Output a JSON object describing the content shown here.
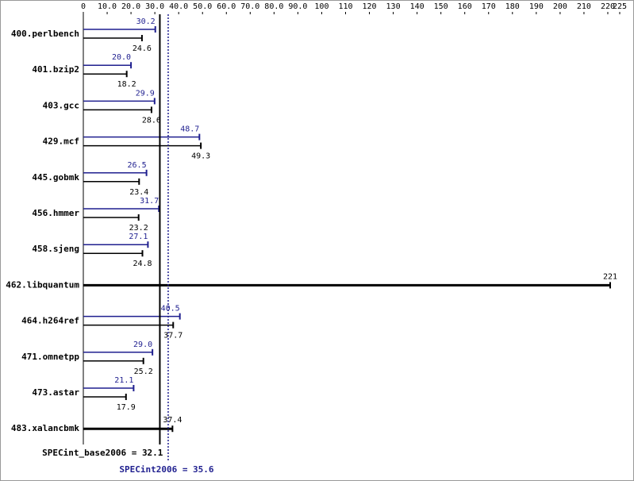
{
  "chart_data": {
    "type": "bar",
    "orientation": "horizontal",
    "categories": [
      "400.perlbench",
      "401.bzip2",
      "403.gcc",
      "429.mcf",
      "445.gobmk",
      "456.hmmer",
      "458.sjeng",
      "462.libquantum",
      "464.h264ref",
      "471.omnetpp",
      "473.astar",
      "483.xalancbmk"
    ],
    "series": [
      {
        "color": "#1f1f8f",
        "values": [
          30.2,
          20.0,
          29.9,
          48.7,
          26.5,
          31.7,
          27.1,
          null,
          40.5,
          29.0,
          21.1,
          null
        ],
        "value_labels": [
          "30.2",
          "20.0",
          "29.9",
          "48.7",
          "26.5",
          "31.7",
          "27.1",
          null,
          "40.5",
          "29.0",
          "21.1",
          null
        ]
      },
      {
        "color": "#000000",
        "values": [
          24.6,
          18.2,
          28.6,
          49.3,
          23.4,
          23.2,
          24.8,
          221,
          37.7,
          25.2,
          17.9,
          37.4
        ]
      }
    ],
    "xlim": [
      0,
      225
    ],
    "xticks": [
      0,
      {
        "value": 10,
        "label": "10.0"
      },
      {
        "value": 20,
        "label": "20.0"
      },
      {
        "value": 30,
        "label": "30.0"
      },
      {
        "value": 40,
        "label": "40.0"
      },
      {
        "value": 50,
        "label": "50.0"
      },
      {
        "value": 60,
        "label": "60.0"
      },
      {
        "value": 70,
        "label": "70.0"
      },
      {
        "value": 80,
        "label": "80.0"
      },
      {
        "value": 90,
        "label": "90.0"
      },
      100,
      110,
      120,
      130,
      140,
      150,
      160,
      170,
      180,
      190,
      200,
      210,
      220,
      225
    ],
    "reference_lines": [
      {
        "value": 32.1,
        "label": "SPECint_base2006 = 32.1",
        "color": "#000000"
      },
      {
        "value": 35.6,
        "label": "SPECint2006 = 35.6",
        "color": "#1f1f8f"
      }
    ]
  }
}
